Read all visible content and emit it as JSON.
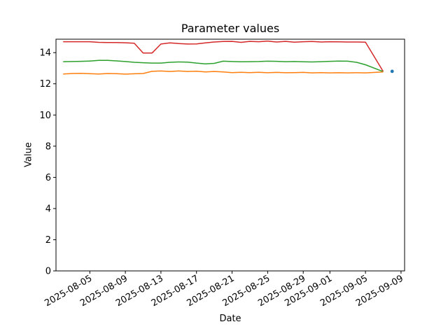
{
  "chart_data": {
    "type": "line",
    "title": "Parameter values",
    "xlabel": "Date",
    "ylabel": "Value",
    "grid": false,
    "legend": false,
    "background_color": "#ffffff",
    "axis_color": "#000000",
    "x_start_date": "2025-08-01",
    "xlim_days": [
      0.2,
      39.4
    ],
    "ylim": [
      0,
      14.86
    ],
    "y_ticks": [
      0,
      2,
      4,
      6,
      8,
      10,
      12,
      14
    ],
    "x_ticks": [
      "2025-08-05",
      "2025-08-09",
      "2025-08-13",
      "2025-08-17",
      "2025-08-21",
      "2025-08-25",
      "2025-08-29",
      "2025-09-01",
      "2025-09-05",
      "2025-09-09"
    ],
    "x_tick_rotation": 30,
    "dates": [
      "2025-08-02",
      "2025-08-03",
      "2025-08-04",
      "2025-08-05",
      "2025-08-06",
      "2025-08-07",
      "2025-08-08",
      "2025-08-09",
      "2025-08-10",
      "2025-08-11",
      "2025-08-12",
      "2025-08-13",
      "2025-08-14",
      "2025-08-15",
      "2025-08-16",
      "2025-08-17",
      "2025-08-18",
      "2025-08-19",
      "2025-08-20",
      "2025-08-21",
      "2025-08-22",
      "2025-08-23",
      "2025-08-24",
      "2025-08-25",
      "2025-08-26",
      "2025-08-27",
      "2025-08-28",
      "2025-08-29",
      "2025-08-30",
      "2025-08-31",
      "2025-09-01",
      "2025-09-02",
      "2025-09-03",
      "2025-09-04",
      "2025-09-05",
      "2025-09-07"
    ],
    "series": [
      {
        "id": "red",
        "color": "#d62728",
        "values": [
          14.7,
          14.7,
          14.7,
          14.7,
          14.66,
          14.65,
          14.65,
          14.63,
          14.6,
          13.97,
          13.97,
          14.55,
          14.62,
          14.58,
          14.55,
          14.56,
          14.62,
          14.68,
          14.71,
          14.72,
          14.66,
          14.72,
          14.7,
          14.74,
          14.68,
          14.72,
          14.67,
          14.7,
          14.71,
          14.68,
          14.7,
          14.69,
          14.68,
          14.68,
          14.67,
          12.78
        ]
      },
      {
        "id": "green",
        "color": "#2ca02c",
        "values": [
          13.42,
          13.43,
          13.44,
          13.46,
          13.5,
          13.5,
          13.47,
          13.43,
          13.38,
          13.35,
          13.33,
          13.33,
          13.38,
          13.4,
          13.39,
          13.33,
          13.28,
          13.31,
          13.45,
          13.43,
          13.41,
          13.42,
          13.43,
          13.45,
          13.44,
          13.42,
          13.43,
          13.41,
          13.4,
          13.42,
          13.44,
          13.46,
          13.45,
          13.38,
          13.22,
          12.78
        ]
      },
      {
        "id": "orange",
        "color": "#ff7f0e",
        "values": [
          12.63,
          12.66,
          12.67,
          12.65,
          12.63,
          12.66,
          12.65,
          12.62,
          12.64,
          12.66,
          12.8,
          12.82,
          12.79,
          12.82,
          12.79,
          12.81,
          12.76,
          12.79,
          12.76,
          12.72,
          12.74,
          12.72,
          12.74,
          12.71,
          12.73,
          12.71,
          12.72,
          12.73,
          12.7,
          12.72,
          12.7,
          12.71,
          12.7,
          12.71,
          12.7,
          12.76
        ]
      }
    ],
    "scatter": [
      {
        "date": "2025-09-08",
        "value": 12.8,
        "color": "#1f77b4"
      }
    ]
  }
}
